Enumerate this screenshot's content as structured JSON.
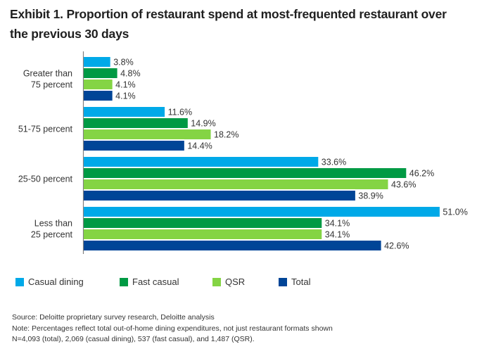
{
  "chart_data": {
    "type": "bar",
    "orientation": "horizontal",
    "title": "Exhibit 1. Proportion of restaurant spend at most-frequented restaurant over the previous 30 days",
    "xlabel": "",
    "ylabel": "",
    "xlim": [
      0,
      55
    ],
    "grid": false,
    "legend_position": "bottom",
    "value_suffix": "%",
    "categories": [
      [
        "Greater than",
        "75 percent"
      ],
      [
        "51-75 percent"
      ],
      [
        "25-50 percent"
      ],
      [
        "Less than",
        "25 percent"
      ]
    ],
    "series": [
      {
        "name": "Casual dining",
        "color": "#00A9E8",
        "values": [
          3.8,
          11.6,
          33.6,
          51.0
        ],
        "labels": [
          "3.8%",
          "11.6%",
          "33.6%",
          "51.0%"
        ]
      },
      {
        "name": "Fast casual",
        "color": "#009A44",
        "values": [
          4.8,
          14.9,
          46.2,
          34.1
        ],
        "labels": [
          "4.8%",
          "14.9%",
          "46.2%",
          "34.1%"
        ]
      },
      {
        "name": "QSR",
        "color": "#84D444",
        "values": [
          4.1,
          18.2,
          43.6,
          34.1
        ],
        "labels": [
          "4.1%",
          "18.2%",
          "43.6%",
          "34.1%"
        ]
      },
      {
        "name": "Total",
        "color": "#004597",
        "values": [
          4.1,
          14.4,
          38.9,
          42.6
        ],
        "labels": [
          "4.1%",
          "14.4%",
          "38.9%",
          "42.6%"
        ]
      }
    ]
  },
  "header": {
    "title": "Exhibit 1. Proportion of restaurant spend at most-frequented restaurant over the previous 30 days"
  },
  "legend": {
    "items": [
      {
        "label": "Casual dining",
        "color": "#00A9E8"
      },
      {
        "label": "Fast casual",
        "color": "#009A44"
      },
      {
        "label": "QSR",
        "color": "#84D444"
      },
      {
        "label": "Total",
        "color": "#004597"
      }
    ]
  },
  "footer": {
    "source": "Source: Deloitte proprietary survey research, Deloitte analysis",
    "note": "Note: Percentages reflect total out-of-home dining expenditures, not just restaurant formats shown",
    "sample": "N=4,093 (total), 2,069 (casual dining), 537 (fast casual), and 1,487 (QSR)."
  },
  "colors": {
    "axis": "#7f7f7f",
    "text": "#333333"
  }
}
